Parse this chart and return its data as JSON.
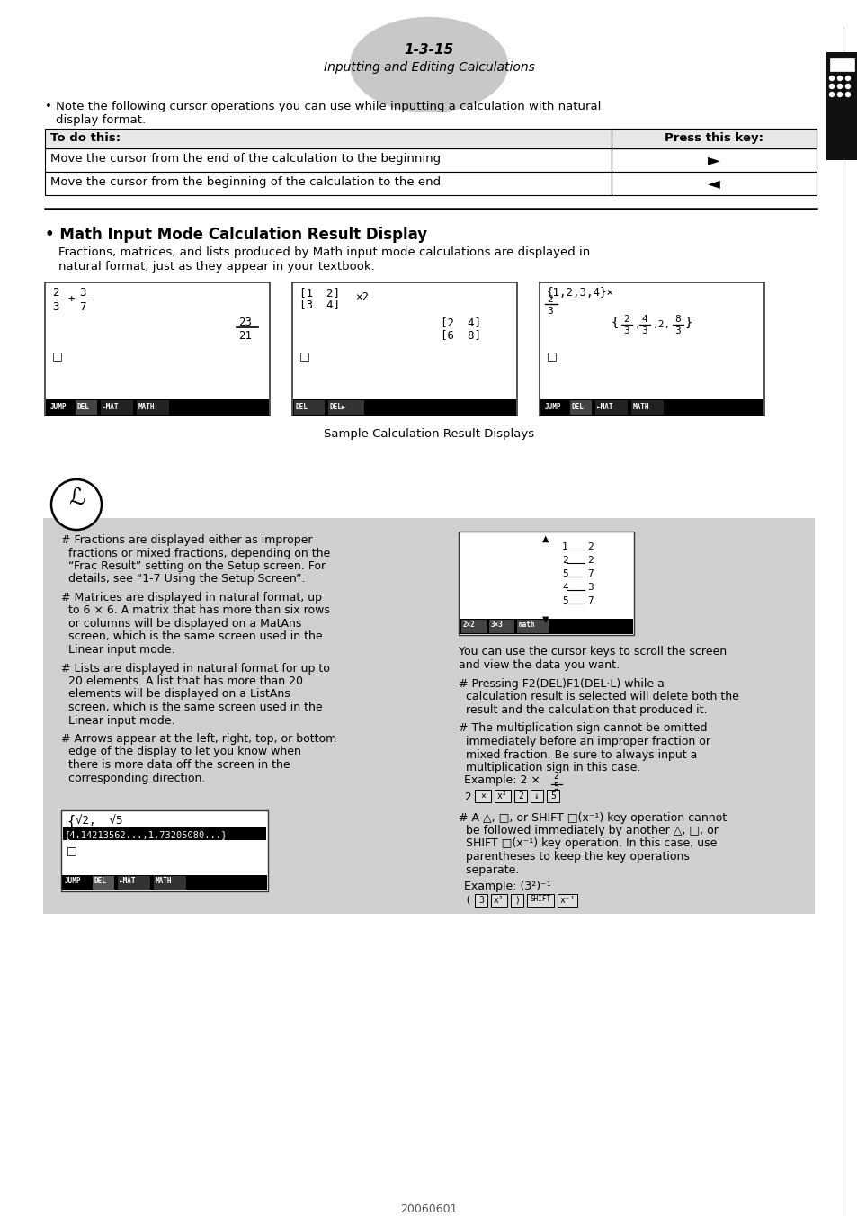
{
  "page_number": "1-3-15",
  "page_subtitle": "Inputting and Editing Calculations",
  "bg_color": "#ffffff",
  "gray_bg_color": "#d0d0d0",
  "bullet_text_1a": "• Note the following cursor operations you can use while inputting a calculation with natural",
  "bullet_text_1b": "  display format.",
  "table_headers": [
    "To do this:",
    "Press this key:"
  ],
  "table_rows": [
    [
      "Move the cursor from the end of the calculation to the beginning",
      "►"
    ],
    [
      "Move the cursor from the beginning of the calculation to the end",
      "◄"
    ]
  ],
  "section_title": "• Math Input Mode Calculation Result Display",
  "section_body_1": "Fractions, matrices, and lists produced by Math input mode calculations are displayed in",
  "section_body_2": "natural format, just as they appear in your textbook.",
  "sample_caption": "Sample Calculation Result Displays",
  "note_bullets_left": [
    [
      "# Fractions are displayed either as improper",
      "  fractions or mixed fractions, depending on the",
      "  “Frac Result” setting on the Setup screen. For",
      "  details, see “1-7 Using the Setup Screen”."
    ],
    [
      "# Matrices are displayed in natural format, up",
      "  to 6 × 6. A matrix that has more than six rows",
      "  or columns will be displayed on a MatAns",
      "  screen, which is the same screen used in the",
      "  Linear input mode."
    ],
    [
      "# Lists are displayed in natural format for up to",
      "  20 elements. A list that has more than 20",
      "  elements will be displayed on a ListAns",
      "  screen, which is the same screen used in the",
      "  Linear input mode."
    ],
    [
      "# Arrows appear at the left, right, top, or bottom",
      "  edge of the display to let you know when",
      "  there is more data off the screen in the",
      "  corresponding direction."
    ]
  ],
  "note_scroll_1": "You can use the cursor keys to scroll the screen",
  "note_scroll_2": "and view the data you want.",
  "note_bullets_right": [
    [
      "# Pressing F2(DEL)F1(DEL·L) while a",
      "  calculation result is selected will delete both the",
      "  result and the calculation that produced it."
    ],
    [
      "# The multiplication sign cannot be omitted",
      "  immediately before an improper fraction or",
      "  mixed fraction. Be sure to always input a",
      "  multiplication sign in this case."
    ],
    [
      "  Example: 2 × "
    ],
    [
      "# A △, □, or SHIFT □(x⁻¹) key operation cannot",
      "  be followed immediately by another △, □, or",
      "  SHIFT □(x⁻¹) key operation. In this case, use",
      "  parentheses to keep the key operations",
      "  separate."
    ],
    [
      "  Example: (3²)⁻¹"
    ]
  ],
  "footer_text": "20060601"
}
